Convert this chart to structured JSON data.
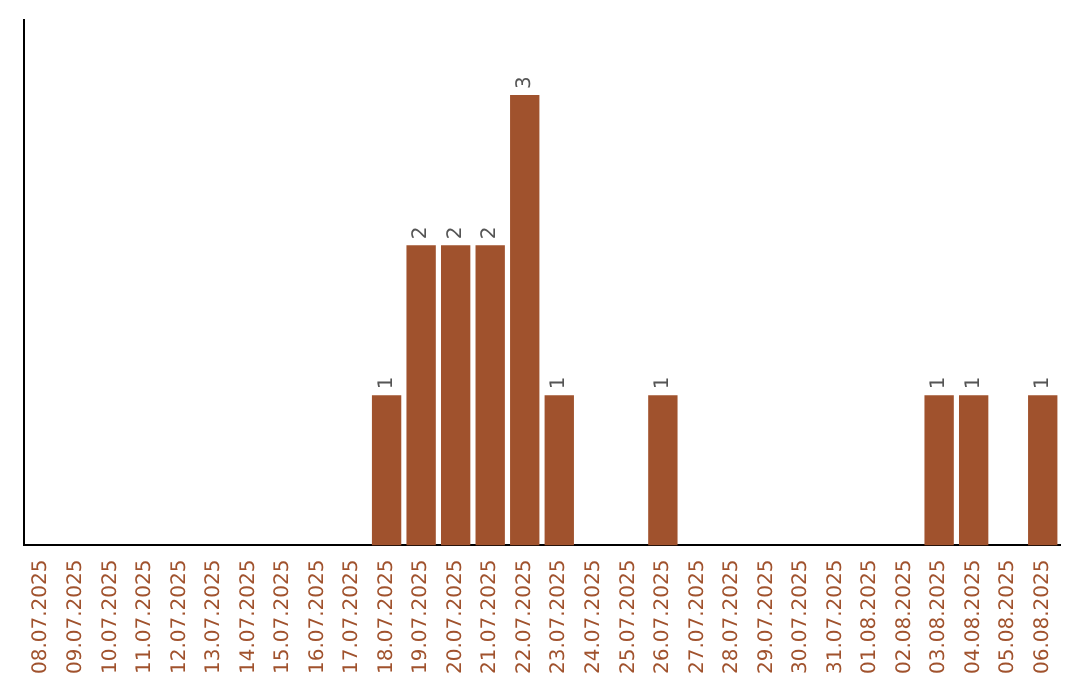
{
  "chart_data": {
    "type": "bar",
    "categories": [
      "08.07.2025",
      "09.07.2025",
      "10.07.2025",
      "11.07.2025",
      "12.07.2025",
      "13.07.2025",
      "14.07.2025",
      "15.07.2025",
      "16.07.2025",
      "17.07.2025",
      "18.07.2025",
      "19.07.2025",
      "20.07.2025",
      "21.07.2025",
      "22.07.2025",
      "23.07.2025",
      "24.07.2025",
      "25.07.2025",
      "26.07.2025",
      "27.07.2025",
      "28.07.2025",
      "29.07.2025",
      "30.07.2025",
      "31.07.2025",
      "01.08.2025",
      "02.08.2025",
      "03.08.2025",
      "04.08.2025",
      "05.08.2025",
      "06.08.2025"
    ],
    "values": [
      0,
      0,
      0,
      0,
      0,
      0,
      0,
      0,
      0,
      0,
      1,
      2,
      2,
      2,
      3,
      1,
      0,
      0,
      1,
      0,
      0,
      0,
      0,
      0,
      0,
      0,
      1,
      1,
      0,
      1
    ],
    "value_labels": [
      null,
      null,
      null,
      null,
      null,
      null,
      null,
      null,
      null,
      null,
      "1",
      "2",
      "2",
      "2",
      "3",
      "1",
      null,
      null,
      "1",
      null,
      null,
      null,
      null,
      null,
      null,
      null,
      "1",
      "1",
      null,
      "1"
    ],
    "color": "#a0522d",
    "grid": false,
    "legend": false
  }
}
